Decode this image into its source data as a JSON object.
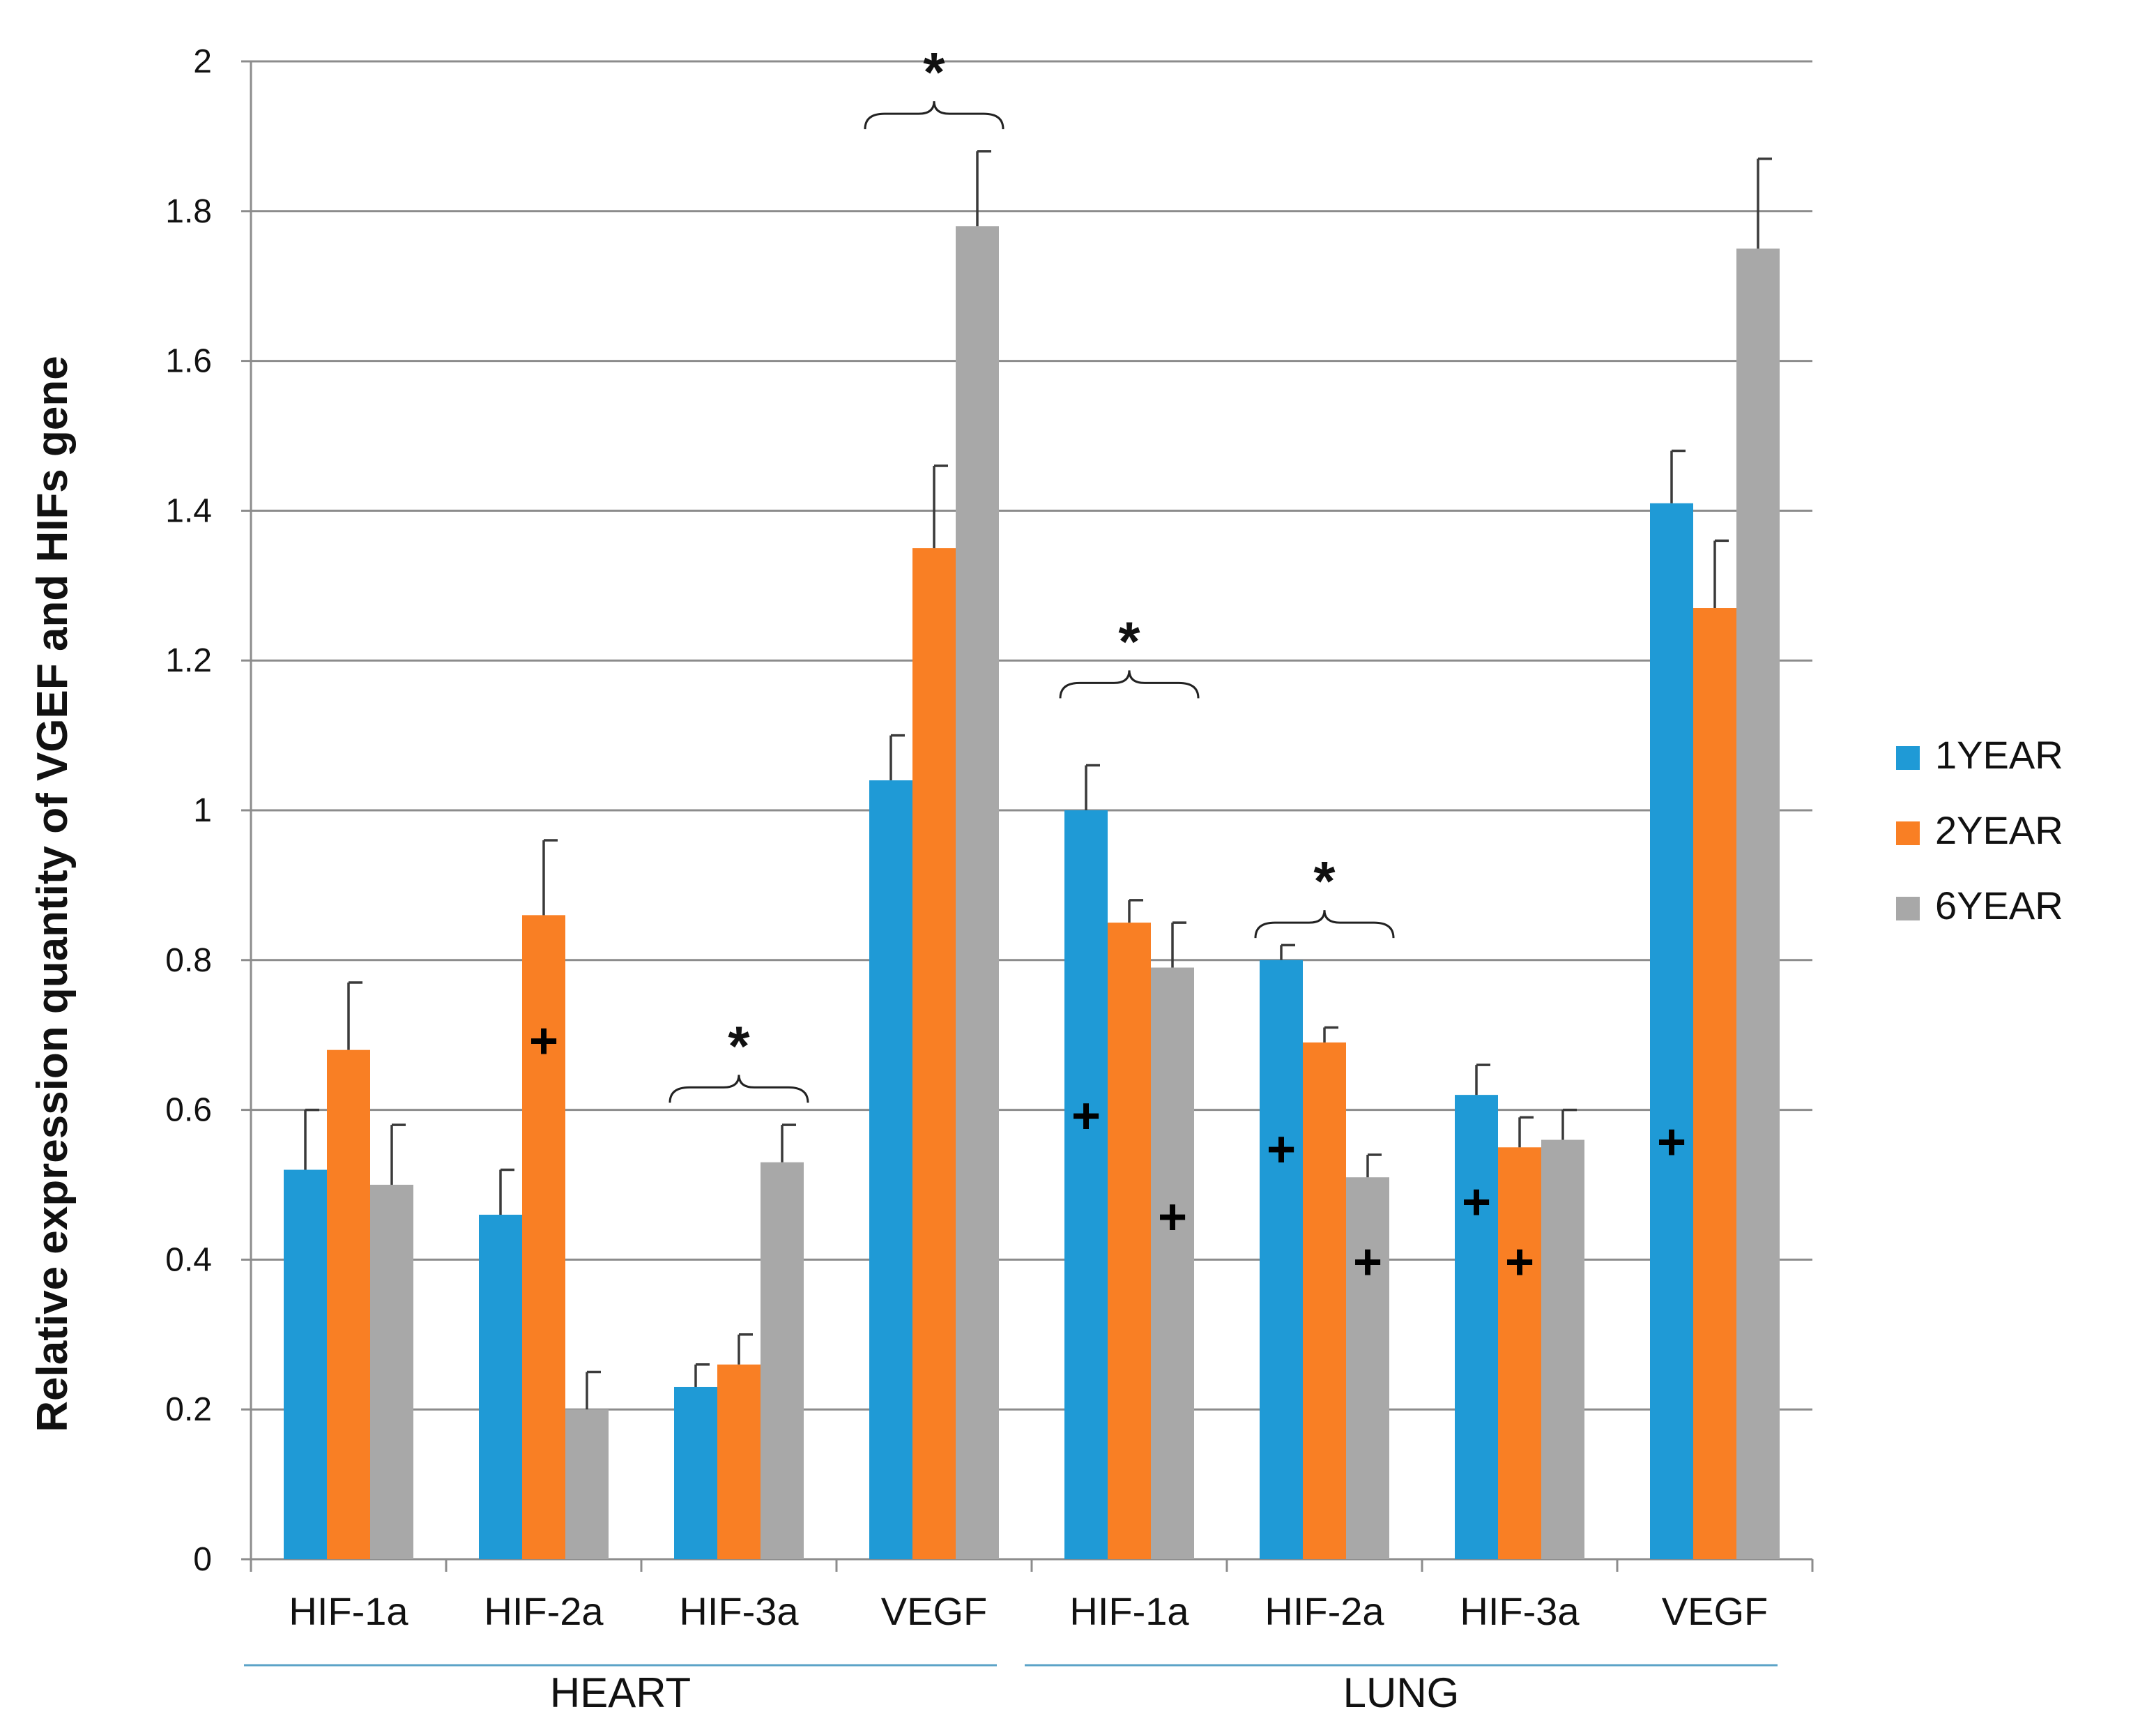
{
  "chart_data": {
    "type": "bar",
    "title": "",
    "ylabel": "Relative expression quantity of VGEF and HIFs gene",
    "xlabel": "",
    "ylim": [
      0,
      2
    ],
    "yticks": [
      0,
      0.2,
      0.4,
      0.6,
      0.8,
      1,
      1.2,
      1.4,
      1.6,
      1.8,
      2
    ],
    "ytick_labels": [
      "0",
      "0.2",
      "0.4",
      "0.6",
      "0.8",
      "1",
      "1.2",
      "1.4",
      "1.6",
      "1.8",
      "2"
    ],
    "grid": true,
    "legend_position": "right",
    "categories": [
      "HIF-1a",
      "HIF-2a",
      "HIF-3a",
      "VEGF",
      "HIF-1a",
      "HIF-2a",
      "HIF-3a",
      "VEGF"
    ],
    "groups": [
      {
        "label": "HEART",
        "start": 0,
        "end": 3
      },
      {
        "label": "LUNG",
        "start": 4,
        "end": 7
      }
    ],
    "series": [
      {
        "name": "1YEAR",
        "color": "#1f9ad6",
        "values": [
          0.52,
          0.46,
          0.23,
          1.04,
          1.0,
          0.8,
          0.62,
          1.41
        ],
        "errors": [
          0.08,
          0.06,
          0.03,
          0.06,
          0.06,
          0.02,
          0.04,
          0.07
        ]
      },
      {
        "name": "2YEAR",
        "color": "#f97f24",
        "values": [
          0.68,
          0.86,
          0.26,
          1.35,
          0.85,
          0.69,
          0.55,
          1.27
        ],
        "errors": [
          0.09,
          0.1,
          0.04,
          0.11,
          0.03,
          0.02,
          0.04,
          0.09
        ]
      },
      {
        "name": "6YEAR",
        "color": "#a8a8a8",
        "values": [
          0.5,
          0.2,
          0.53,
          1.78,
          0.79,
          0.51,
          0.56,
          1.75
        ],
        "errors": [
          0.08,
          0.05,
          0.05,
          0.1,
          0.06,
          0.03,
          0.04,
          0.12
        ]
      }
    ],
    "significance_brackets": [
      {
        "category": 2,
        "label": "*",
        "y": 0.63
      },
      {
        "category": 3,
        "label": "*",
        "y": 1.93
      },
      {
        "category": 4,
        "label": "*",
        "y": 1.17
      },
      {
        "category": 5,
        "label": "*",
        "y": 0.85
      }
    ],
    "plus_markers": [
      {
        "category": 1,
        "series": 1,
        "y": 0.69,
        "label": "+"
      },
      {
        "category": 4,
        "series": 0,
        "y": 0.59,
        "label": "+"
      },
      {
        "category": 4,
        "series": 2,
        "y": 0.455,
        "label": "+"
      },
      {
        "category": 5,
        "series": 0,
        "y": 0.545,
        "label": "+"
      },
      {
        "category": 5,
        "series": 2,
        "y": 0.395,
        "label": "+"
      },
      {
        "category": 6,
        "series": 0,
        "y": 0.475,
        "label": "+"
      },
      {
        "category": 6,
        "series": 1,
        "y": 0.395,
        "label": "+"
      },
      {
        "category": 7,
        "series": 0,
        "y": 0.555,
        "label": "+"
      }
    ]
  }
}
